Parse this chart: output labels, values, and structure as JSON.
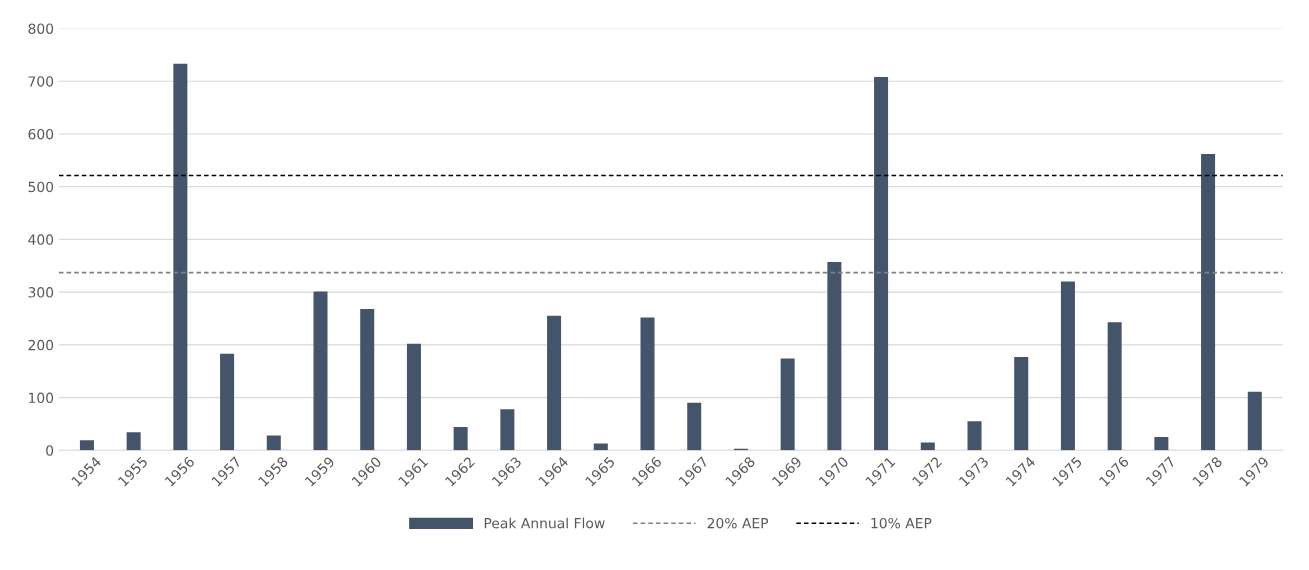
{
  "chart_data": {
    "type": "bar",
    "categories": [
      "1954",
      "1955",
      "1956",
      "1957",
      "1958",
      "1959",
      "1960",
      "1961",
      "1962",
      "1963",
      "1964",
      "1965",
      "1966",
      "1967",
      "1968",
      "1969",
      "1970",
      "1971",
      "1972",
      "1973",
      "1974",
      "1975",
      "1976",
      "1977",
      "1978",
      "1979"
    ],
    "series": [
      {
        "name": "Peak Annual Flow",
        "color": "#44546a",
        "values": [
          19,
          34,
          733,
          183,
          28,
          301,
          268,
          202,
          44,
          78,
          255,
          13,
          252,
          90,
          3,
          174,
          357,
          708,
          15,
          55,
          177,
          320,
          243,
          25,
          562,
          111
        ]
      }
    ],
    "ylim": [
      0,
      800
    ],
    "yticks": [
      0,
      100,
      200,
      300,
      400,
      500,
      600,
      700,
      800
    ],
    "ref_lines": [
      {
        "axis": "y",
        "value": 337,
        "label": "20% AEP",
        "color": "#808080",
        "line_style": "dashed"
      },
      {
        "axis": "y",
        "value": 521,
        "label": "10% AEP",
        "color": "#000000",
        "line_style": "dashed"
      }
    ],
    "grid": "y",
    "legend": "bottom"
  }
}
